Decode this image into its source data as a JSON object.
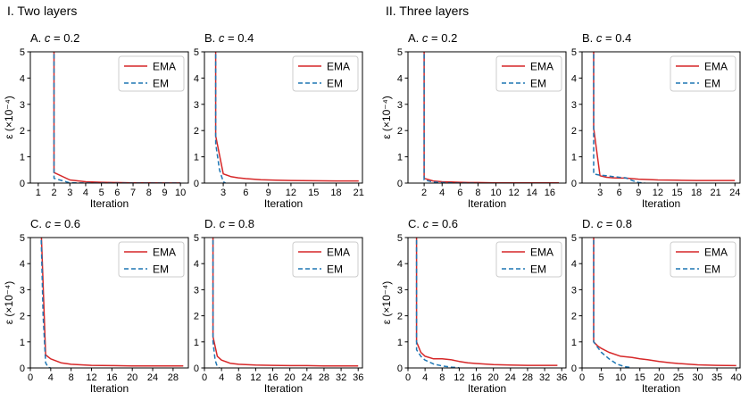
{
  "sections": [
    {
      "title": "I. Two layers"
    },
    {
      "title": "II. Three layers"
    }
  ],
  "colors": {
    "ema": "#d62728",
    "em": "#1f77b4",
    "axis": "#000000"
  },
  "chart_data": [
    {
      "type": "line",
      "section": 0,
      "title": "A. c = 0.2",
      "title_prefix": "A.",
      "c_symbol": "c",
      "c_value": "= 0.2",
      "xlabel": "Iteration",
      "ylabel": "ε (×10⁻⁴)",
      "xlim": [
        0.5,
        10.5
      ],
      "ylim": [
        0,
        5
      ],
      "xticks": [
        1,
        2,
        3,
        4,
        5,
        6,
        7,
        8,
        9,
        10
      ],
      "yticks": [
        0,
        1,
        2,
        3,
        4,
        5
      ],
      "legend_position": "top-right",
      "series": [
        {
          "name": "EMA",
          "style": "solid",
          "x": [
            2,
            2,
            3,
            4,
            5,
            6,
            7,
            8,
            9,
            10
          ],
          "y": [
            6,
            0.4,
            0.12,
            0.05,
            0.03,
            0.02,
            0.01,
            0.01,
            0.005,
            0.005
          ]
        },
        {
          "name": "EM",
          "style": "dashed",
          "x": [
            2,
            2,
            3,
            4,
            5,
            6,
            7,
            8,
            9,
            10
          ],
          "y": [
            6,
            0.18,
            0.01,
            0.005,
            0,
            0,
            0,
            0,
            0,
            0
          ]
        }
      ]
    },
    {
      "type": "line",
      "section": 0,
      "title": "B. c = 0.4",
      "title_prefix": "B.",
      "c_symbol": "c",
      "c_value": "= 0.4",
      "xlabel": "Iteration",
      "ylabel": "",
      "xlim": [
        0.5,
        21.5
      ],
      "ylim": [
        0,
        5
      ],
      "xticks": [
        3,
        6,
        9,
        12,
        15,
        18,
        21
      ],
      "yticks": [
        0,
        1,
        2,
        3,
        4,
        5
      ],
      "legend_position": "top-right",
      "series": [
        {
          "name": "EMA",
          "style": "solid",
          "x": [
            2,
            2,
            3,
            4,
            5,
            6,
            7,
            8,
            9,
            10,
            12,
            15,
            18,
            21
          ],
          "y": [
            6,
            1.8,
            0.35,
            0.25,
            0.2,
            0.17,
            0.15,
            0.13,
            0.12,
            0.11,
            0.1,
            0.09,
            0.08,
            0.08
          ]
        },
        {
          "name": "EM",
          "style": "dashed",
          "x": [
            2,
            2,
            2.5,
            3,
            3.3
          ],
          "y": [
            6,
            1.5,
            0.5,
            0.05,
            0
          ]
        }
      ]
    },
    {
      "type": "line",
      "section": 1,
      "title": "A. c = 0.2",
      "title_prefix": "A.",
      "c_symbol": "c",
      "c_value": "= 0.2",
      "xlabel": "Iteration",
      "ylabel": "ε (×10⁻⁴)",
      "xlim": [
        0.2,
        17.8
      ],
      "ylim": [
        0,
        5
      ],
      "xticks": [
        2,
        4,
        6,
        8,
        10,
        12,
        14,
        16
      ],
      "yticks": [
        0,
        1,
        2,
        3,
        4,
        5
      ],
      "legend_position": "top-right",
      "series": [
        {
          "name": "EMA",
          "style": "solid",
          "x": [
            2,
            2,
            3,
            4,
            5,
            6,
            7,
            8,
            10,
            12,
            14,
            16,
            17
          ],
          "y": [
            6,
            0.18,
            0.08,
            0.05,
            0.04,
            0.03,
            0.02,
            0.02,
            0.01,
            0.01,
            0.01,
            0.01,
            0.01
          ]
        },
        {
          "name": "EM",
          "style": "dashed",
          "x": [
            2,
            2,
            3,
            4,
            5,
            6,
            8
          ],
          "y": [
            6,
            0.12,
            0.04,
            0.02,
            0.01,
            0,
            0
          ]
        }
      ]
    },
    {
      "type": "line",
      "section": 1,
      "title": "B. c = 0.4",
      "title_prefix": "B.",
      "c_symbol": "c",
      "c_value": "= 0.4",
      "xlabel": "Iteration",
      "ylabel": "",
      "xlim": [
        0.2,
        24.8
      ],
      "ylim": [
        0,
        5
      ],
      "xticks": [
        3,
        6,
        9,
        12,
        15,
        18,
        21,
        24
      ],
      "yticks": [
        0,
        1,
        2,
        3,
        4,
        5
      ],
      "legend_position": "top-right",
      "series": [
        {
          "name": "EMA",
          "style": "solid",
          "x": [
            2,
            2,
            3,
            4,
            5,
            6,
            7,
            8,
            9,
            10,
            12,
            15,
            18,
            21,
            24
          ],
          "y": [
            6,
            2.1,
            0.28,
            0.22,
            0.2,
            0.19,
            0.19,
            0.17,
            0.15,
            0.14,
            0.12,
            0.11,
            0.1,
            0.1,
            0.1
          ]
        },
        {
          "name": "EM",
          "style": "dashed",
          "x": [
            2,
            2,
            3,
            4,
            5,
            6,
            7,
            8,
            9,
            10
          ],
          "y": [
            6,
            0.35,
            0.3,
            0.28,
            0.25,
            0.22,
            0.2,
            0.1,
            0.02,
            0
          ]
        }
      ]
    },
    {
      "type": "line",
      "section": 0,
      "title": "C. c = 0.6",
      "title_prefix": "C.",
      "c_symbol": "c",
      "c_value": "= 0.6",
      "xlabel": "Iteration",
      "ylabel": "ε (×10⁻⁴)",
      "xlim": [
        0,
        31
      ],
      "ylim": [
        0,
        5
      ],
      "xticks": [
        0,
        4,
        8,
        12,
        16,
        20,
        24,
        28
      ],
      "yticks": [
        0,
        1,
        2,
        3,
        4,
        5
      ],
      "legend_position": "top-right",
      "series": [
        {
          "name": "EMA",
          "style": "solid",
          "x": [
            2,
            3,
            4,
            6,
            8,
            10,
            12,
            16,
            20,
            24,
            28,
            30
          ],
          "y": [
            6,
            0.5,
            0.35,
            0.2,
            0.14,
            0.12,
            0.1,
            0.09,
            0.08,
            0.08,
            0.08,
            0.08
          ]
        },
        {
          "name": "EM",
          "style": "dashed",
          "x": [
            2,
            2.5,
            3,
            3.5,
            4
          ],
          "y": [
            6,
            2,
            0.2,
            0.02,
            0
          ]
        }
      ]
    },
    {
      "type": "line",
      "section": 0,
      "title": "D. c = 0.8",
      "title_prefix": "D.",
      "c_symbol": "c",
      "c_value": "= 0.8",
      "xlabel": "Iteration",
      "ylabel": "",
      "xlim": [
        0,
        37
      ],
      "ylim": [
        0,
        5
      ],
      "xticks": [
        0,
        4,
        8,
        12,
        16,
        20,
        24,
        28,
        32,
        36
      ],
      "yticks": [
        0,
        1,
        2,
        3,
        4,
        5
      ],
      "legend_position": "top-right",
      "series": [
        {
          "name": "EMA",
          "style": "solid",
          "x": [
            2,
            2,
            3,
            4,
            6,
            8,
            12,
            16,
            20,
            24,
            28,
            32,
            36
          ],
          "y": [
            6,
            1.2,
            0.45,
            0.3,
            0.18,
            0.14,
            0.11,
            0.1,
            0.09,
            0.09,
            0.08,
            0.08,
            0.08
          ]
        },
        {
          "name": "EM",
          "style": "dashed",
          "x": [
            2,
            2,
            2.5,
            3,
            3.5
          ],
          "y": [
            6,
            1.0,
            0.3,
            0.05,
            0
          ]
        }
      ]
    },
    {
      "type": "line",
      "section": 1,
      "title": "C. c = 0.6",
      "title_prefix": "C.",
      "c_symbol": "c",
      "c_value": "= 0.6",
      "xlabel": "Iteration",
      "ylabel": "ε (×10⁻⁴)",
      "xlim": [
        0,
        37
      ],
      "ylim": [
        0,
        5
      ],
      "xticks": [
        0,
        4,
        8,
        12,
        16,
        20,
        24,
        28,
        32,
        36
      ],
      "yticks": [
        0,
        1,
        2,
        3,
        4,
        5
      ],
      "legend_position": "top-right",
      "series": [
        {
          "name": "EMA",
          "style": "solid",
          "x": [
            2,
            2,
            3,
            4,
            6,
            8,
            10,
            12,
            14,
            16,
            20,
            24,
            28,
            32,
            35
          ],
          "y": [
            6,
            1.0,
            0.6,
            0.45,
            0.35,
            0.35,
            0.32,
            0.25,
            0.2,
            0.17,
            0.13,
            0.11,
            0.1,
            0.1,
            0.1
          ]
        },
        {
          "name": "EM",
          "style": "dashed",
          "x": [
            2,
            2,
            3,
            4,
            6,
            8,
            10,
            12
          ],
          "y": [
            6,
            0.7,
            0.45,
            0.3,
            0.15,
            0.08,
            0.03,
            0.01
          ]
        }
      ]
    },
    {
      "type": "line",
      "section": 1,
      "title": "D. c = 0.8",
      "title_prefix": "D.",
      "c_symbol": "c",
      "c_value": "= 0.8",
      "xlabel": "Iteration",
      "ylabel": "",
      "xlim": [
        0,
        41
      ],
      "ylim": [
        0,
        5
      ],
      "xticks": [
        0,
        5,
        10,
        15,
        20,
        25,
        30,
        35,
        40
      ],
      "yticks": [
        0,
        1,
        2,
        3,
        4,
        5
      ],
      "legend_position": "top-right",
      "series": [
        {
          "name": "EMA",
          "style": "solid",
          "x": [
            3,
            3,
            4,
            5,
            7,
            10,
            13,
            15,
            17,
            20,
            23,
            25,
            30,
            35,
            40
          ],
          "y": [
            6,
            1.0,
            0.85,
            0.75,
            0.6,
            0.45,
            0.4,
            0.35,
            0.32,
            0.25,
            0.2,
            0.17,
            0.12,
            0.1,
            0.09
          ]
        },
        {
          "name": "EM",
          "style": "dashed",
          "x": [
            3,
            3,
            5,
            7,
            9,
            11,
            13
          ],
          "y": [
            6,
            1.0,
            0.6,
            0.35,
            0.15,
            0.05,
            0.01
          ]
        }
      ]
    }
  ]
}
